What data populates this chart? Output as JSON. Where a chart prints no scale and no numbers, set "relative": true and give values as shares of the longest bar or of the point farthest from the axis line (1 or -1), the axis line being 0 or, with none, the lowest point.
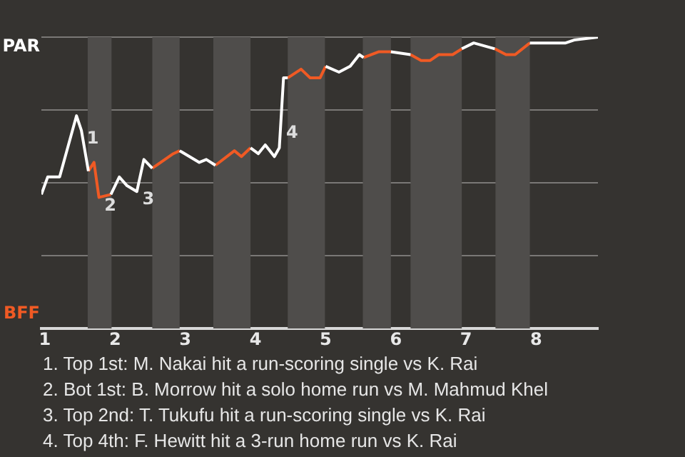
{
  "chart_data": {
    "type": "line",
    "relative": true,
    "xlim": [
      0.95,
      8.88
    ],
    "xticks": [
      1,
      2,
      3,
      4,
      5,
      6,
      7,
      8
    ],
    "grid": "y",
    "legend": "left",
    "marker": "none",
    "line_style": "solid",
    "series": [
      {
        "name": "PAR",
        "color": "#ffffff",
        "x": [
          0.95,
          1.04,
          1.21,
          1.45,
          1.52,
          1.62,
          1.8,
          1.94,
          2.06,
          2.17,
          2.31,
          2.41,
          2.53,
          2.68,
          2.92,
          3.2,
          3.3,
          3.43,
          3.57,
          3.93,
          4.04,
          4.14,
          4.27,
          4.34,
          4.4,
          4.46,
          4.72,
          5.0,
          5.19,
          5.35,
          5.48,
          5.54,
          5.66,
          5.93,
          6.21,
          6.5,
          6.94,
          7.11,
          7.41,
          7.72,
          7.91,
          8.26,
          8.42,
          8.54,
          8.88
        ],
        "values": [
          0.46,
          0.52,
          0.52,
          0.73,
          0.68,
          0.54,
          null,
          0.46,
          0.52,
          0.49,
          0.47,
          0.58,
          0.55,
          null,
          0.61,
          0.57,
          0.58,
          0.56,
          null,
          0.62,
          0.6,
          0.63,
          0.59,
          0.62,
          0.86,
          0.86,
          null,
          0.9,
          0.88,
          0.9,
          0.94,
          0.93,
          null,
          0.95,
          0.94,
          null,
          0.96,
          0.98,
          0.96,
          null,
          0.98,
          0.98,
          0.98,
          0.99,
          1.0
        ]
      },
      {
        "name": "BFF",
        "color": "#f05a24",
        "x": [
          1.62,
          1.7,
          1.77,
          1.94,
          2.23,
          2.53,
          2.83,
          2.92,
          3.13,
          3.43,
          3.7,
          3.8,
          3.93,
          4.19,
          4.46,
          4.65,
          4.78,
          4.92,
          5.0,
          5.27,
          5.54,
          5.76,
          5.93,
          6.07,
          6.21,
          6.36,
          6.49,
          6.61,
          6.81,
          6.94,
          7.13,
          7.41,
          7.57,
          7.7,
          7.91
        ],
        "values": [
          0.54,
          0.57,
          0.45,
          0.46,
          null,
          0.55,
          0.6,
          0.61,
          null,
          0.56,
          0.61,
          0.59,
          0.62,
          null,
          0.86,
          0.89,
          0.86,
          0.86,
          0.9,
          null,
          0.93,
          0.95,
          0.95,
          null,
          0.94,
          0.92,
          0.92,
          0.94,
          0.94,
          0.96,
          null,
          0.96,
          0.94,
          0.94,
          0.98
        ]
      }
    ],
    "bands": [
      {
        "axis": "x",
        "from": 1.61,
        "to": 1.95,
        "color": "#4f4d4b"
      },
      {
        "axis": "x",
        "from": 2.53,
        "to": 2.92,
        "color": "#4f4d4b"
      },
      {
        "axis": "x",
        "from": 3.4,
        "to": 3.93,
        "color": "#4f4d4b"
      },
      {
        "axis": "x",
        "from": 4.46,
        "to": 4.99,
        "color": "#4f4d4b"
      },
      {
        "axis": "x",
        "from": 5.53,
        "to": 5.93,
        "color": "#4f4d4b"
      },
      {
        "axis": "x",
        "from": 6.21,
        "to": 6.94,
        "color": "#4f4d4b"
      },
      {
        "axis": "x",
        "from": 7.42,
        "to": 7.91,
        "color": "#4f4d4b"
      }
    ],
    "annotations": [
      {
        "text": "1",
        "x": 1.52,
        "y": 0.68
      },
      {
        "text": "2",
        "x": 1.77,
        "y": 0.45
      },
      {
        "text": "3",
        "x": 2.31,
        "y": 0.47
      },
      {
        "text": "4",
        "x": 4.36,
        "y": 0.7
      },
      "1. Top 1st: M. Nakai hit a run-scoring single vs K. Rai",
      "2. Bot 1st: B. Morrow hit a solo home run vs M. Mahmud Khel",
      "3. Top 2nd: T. Tukufu hit a run-scoring single vs K. Rai",
      "4. Top 4th: F. Hewitt hit a 3-run home run vs K. Rai"
    ]
  }
}
